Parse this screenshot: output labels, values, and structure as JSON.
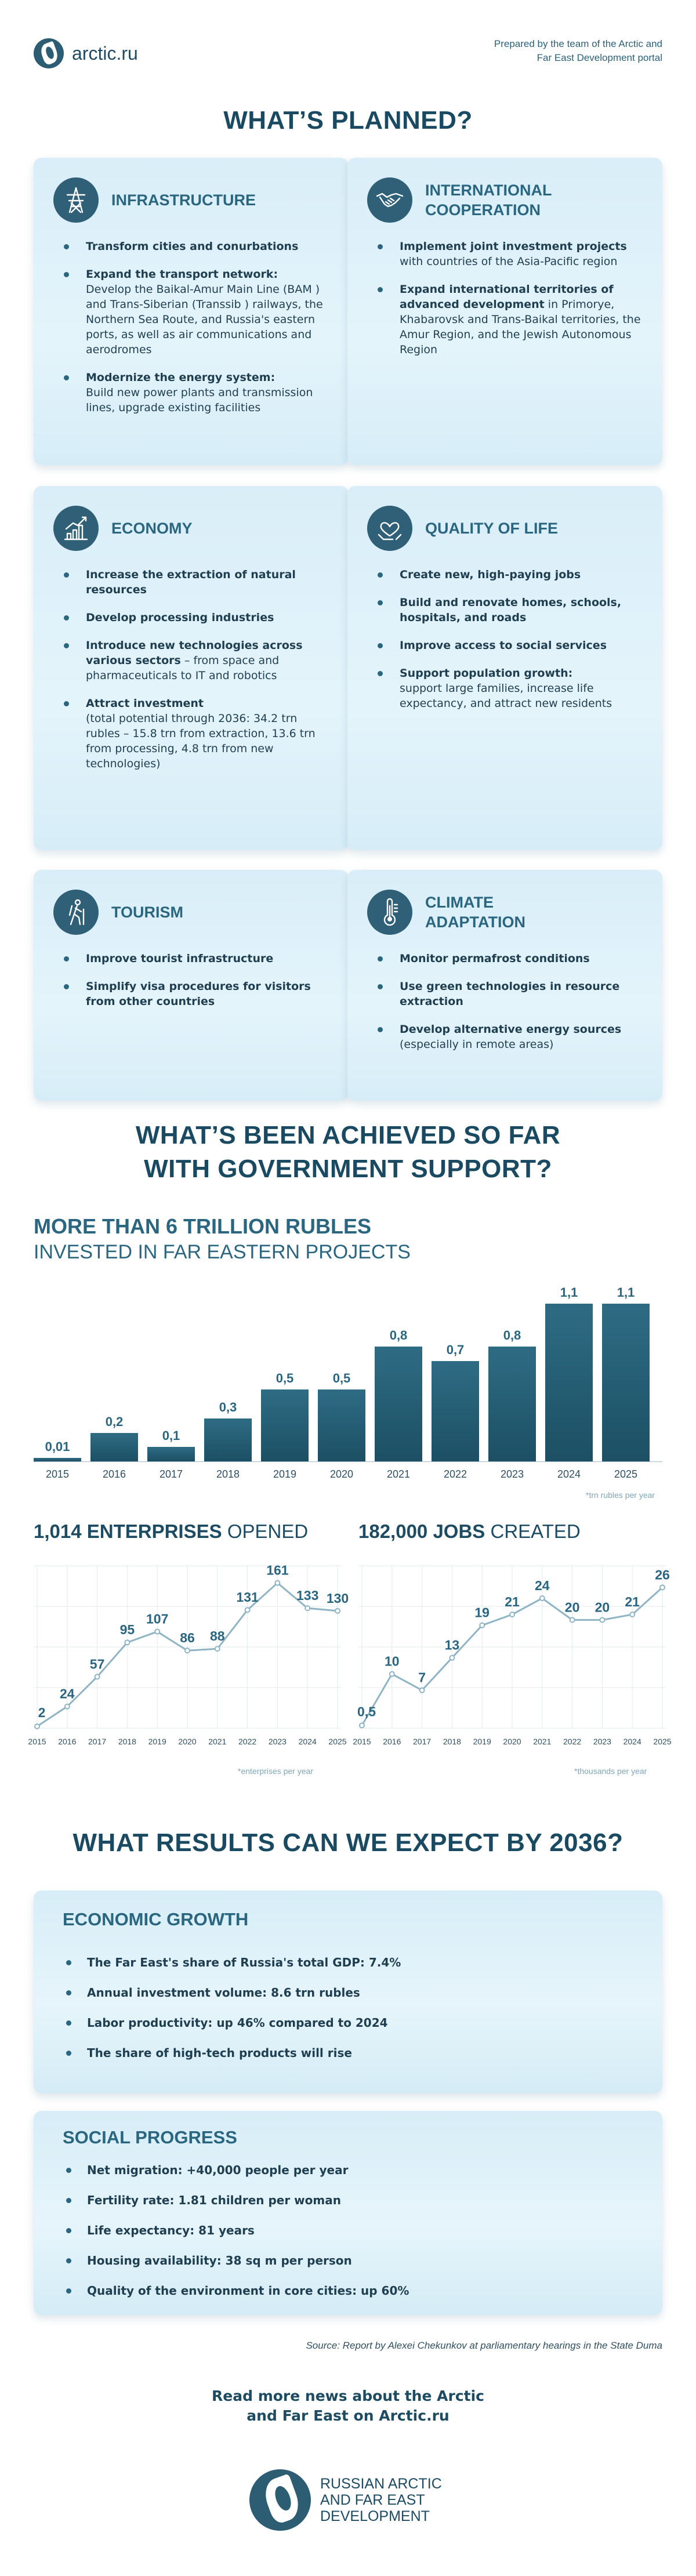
{
  "header": {
    "logo_text": "arctic.ru",
    "prepared": "Prepared by the team of the Arctic and Far East Development portal"
  },
  "planned": {
    "title": "WHAT’S PLANNED?",
    "cards": [
      {
        "title": "INFRASTRUCTURE",
        "icon": "power-tower-icon",
        "items": [
          {
            "bold": "Transform cities and conurbations",
            "text": ""
          },
          {
            "bold": "Expand the transport network:",
            "text": "Develop the Baikal-Amur Main Line (BAM ) and Trans-Siberian (Transsib ) railways, the Northern Sea Route, and Russia's eastern ports, as well as air communications and aerodromes"
          },
          {
            "bold": "Modernize the energy system:",
            "text": "Build new power plants and transmission lines, upgrade existing facilities"
          }
        ]
      },
      {
        "title": "INTERNATIONAL COOPERATION",
        "icon": "handshake-icon",
        "items": [
          {
            "bold": "Implement joint investment projects",
            "text": "with countries of the Asia-Pacific region"
          },
          {
            "bold": "Expand international territories of advanced development",
            "text": "in Primorye, Khabarovsk and Trans-Baikal territories, the Amur Region, and the Jewish Autonomous Region"
          }
        ]
      },
      {
        "title": "ECONOMY",
        "icon": "growth-chart-icon",
        "items": [
          {
            "bold": "Increase the extraction of natural resources",
            "text": ""
          },
          {
            "bold": "Develop processing industries",
            "text": ""
          },
          {
            "bold": "Introduce new technologies across various sectors",
            "text": "– from space and pharmaceuticals to IT and robotics"
          },
          {
            "bold": "Attract investment",
            "text": "(total potential through 2036: 34.2 trn rubles – 15.8 trn from extraction, 13.6 trn from processing, 4.8 trn from new technologies)"
          }
        ]
      },
      {
        "title": "QUALITY OF LIFE",
        "icon": "heart-hands-icon",
        "items": [
          {
            "bold": "Create new, high-paying jobs",
            "text": ""
          },
          {
            "bold": "Build and renovate homes, schools, hospitals, and roads",
            "text": ""
          },
          {
            "bold": "Improve access to social services",
            "text": ""
          },
          {
            "bold": "Support population growth:",
            "text": "support large families, increase life expectancy, and attract new residents"
          }
        ]
      },
      {
        "title": "TOURISM",
        "icon": "hiker-icon",
        "items": [
          {
            "bold": "Improve tourist infrastructure",
            "text": ""
          },
          {
            "bold": "Simplify visa procedures for visitors from other countries",
            "text": ""
          }
        ]
      },
      {
        "title": "CLIMATE ADAPTATION",
        "icon": "thermometer-icon",
        "items": [
          {
            "bold": "Monitor permafrost conditions",
            "text": ""
          },
          {
            "bold": "Use green technologies in resource extraction",
            "text": ""
          },
          {
            "bold": "Develop alternative energy sources",
            "text": "(especially in remote areas)"
          }
        ]
      }
    ]
  },
  "achieved": {
    "title_line1": "WHAT’S BEEN ACHIEVED SO FAR",
    "title_line2": "WITH GOVERNMENT SUPPORT?"
  },
  "chart_data": [
    {
      "type": "bar",
      "title": "MORE THAN 6 TRILLION RUBLES",
      "subtitle": "INVESTED IN FAR EASTERN PROJECTS",
      "unit_note": "*trn rubles per year",
      "categories": [
        "2015",
        "2016",
        "2017",
        "2018",
        "2019",
        "2020",
        "2021",
        "2022",
        "2023",
        "2024",
        "2025"
      ],
      "values": [
        0.01,
        0.2,
        0.1,
        0.3,
        0.5,
        0.5,
        0.8,
        0.7,
        0.8,
        1.1,
        1.1
      ],
      "value_labels": [
        "0,01",
        "0,2",
        "0,1",
        "0,3",
        "0,5",
        "0,5",
        "0,8",
        "0,7",
        "0,8",
        "1,1",
        "1,1"
      ],
      "ylim": [
        0,
        1.1
      ],
      "color": "#245b72"
    },
    {
      "type": "line",
      "title_bold": "1,014 ENTERPRISES",
      "title_rest": "OPENED",
      "unit_note": "*enterprises per year",
      "x": [
        "2015",
        "2016",
        "2017",
        "2018",
        "2019",
        "2020",
        "2021",
        "2022",
        "2023",
        "2024",
        "2025"
      ],
      "values": [
        2,
        24,
        57,
        95,
        107,
        86,
        88,
        131,
        161,
        133,
        130
      ],
      "value_labels": [
        "2",
        "24",
        "57",
        "95",
        "107",
        "86",
        "88",
        "131",
        "161",
        "133",
        "130"
      ],
      "ylim": [
        0,
        180
      ],
      "grid": true,
      "color": "#8fb4c4"
    },
    {
      "type": "line",
      "title_bold": "182,000 JOBS",
      "title_rest": "CREATED",
      "unit_note": "*thousands per year",
      "x": [
        "2015",
        "2016",
        "2017",
        "2018",
        "2019",
        "2020",
        "2021",
        "2022",
        "2023",
        "2024",
        "2025"
      ],
      "values": [
        0.5,
        10,
        7,
        13,
        19,
        21,
        24,
        20,
        20,
        21,
        26
      ],
      "value_labels": [
        "0,5",
        "10",
        "7",
        "13",
        "19",
        "21",
        "24",
        "20",
        "20",
        "21",
        "26"
      ],
      "ylim": [
        0,
        30
      ],
      "grid": true,
      "color": "#8fb4c4"
    }
  ],
  "results": {
    "title": "WHAT RESULTS CAN WE EXPECT BY 2036?",
    "economic": {
      "title": "ECONOMIC GROWTH",
      "items": [
        "The Far East's share of Russia's total GDP: 7.4%",
        "Annual investment volume: 8.6 trn rubles",
        "Labor productivity: up 46% compared to 2024",
        "The share of high-tech products will rise"
      ]
    },
    "social": {
      "title": "SOCIAL PROGRESS",
      "items": [
        "Net migration: +40,000 people per year",
        "Fertility rate: 1.81 children per woman",
        "Life expectancy: 81 years",
        "Housing availability: 38 sq m per person",
        "Quality of the environment in core cities: up 60%"
      ]
    }
  },
  "source": "Source: Report by Alexei Chekunkov at parliamentary hearings in the State Duma",
  "footer": {
    "readmore_line1": "Read more news about the Arctic",
    "readmore_line2": "and Far East on Arctic.ru",
    "org_name": "RUSSIAN ARCTIC AND FAR EAST DEVELOPMENT"
  }
}
